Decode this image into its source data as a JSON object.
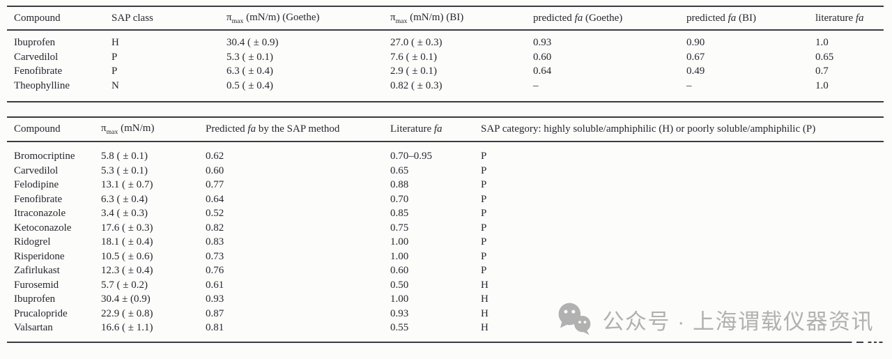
{
  "table1": {
    "headers": [
      "Compound",
      "SAP class",
      "π_max (mN/m) (Goethe)",
      "π_max (mN/m) (BI)",
      "predicted fa (Goethe)",
      "predicted fa (BI)",
      "literature fa"
    ],
    "rows": [
      [
        "Ibuprofen",
        "H",
        "30.4 ( ± 0.9)",
        "27.0 ( ± 0.3)",
        "0.93",
        "0.90",
        "1.0"
      ],
      [
        "Carvedilol",
        "P",
        "5.3 ( ± 0.1)",
        "7.6 ( ± 0.1)",
        "0.60",
        "0.67",
        "0.65"
      ],
      [
        "Fenofibrate",
        "P",
        "6.3 ( ± 0.4)",
        "2.9 ( ± 0.1)",
        "0.64",
        "0.49",
        "0.7"
      ],
      [
        "Theophylline",
        "N",
        "0.5 ( ± 0.4)",
        "0.82 ( ± 0.3)",
        "–",
        "–",
        "1.0"
      ]
    ]
  },
  "table2": {
    "headers": [
      "Compound",
      "π_max (mN/m)",
      "Predicted fa by the SAP method",
      "Literature fa",
      "SAP category: highly soluble/amphiphilic (H) or poorly soluble/amphiphilic (P)"
    ],
    "rows": [
      [
        "Bromocriptine",
        "5.8 ( ± 0.1)",
        "0.62",
        "0.70–0.95",
        "P"
      ],
      [
        "Carvedilol",
        "5.3 ( ± 0.1)",
        "0.60",
        "0.65",
        "P"
      ],
      [
        "Felodipine",
        "13.1 ( ± 0.7)",
        "0.77",
        "0.88",
        "P"
      ],
      [
        "Fenofibrate",
        "6.3 ( ± 0.4)",
        "0.64",
        "0.70",
        "P"
      ],
      [
        "Itraconazole",
        "3.4 ( ± 0.3)",
        "0.52",
        "0.85",
        "P"
      ],
      [
        "Ketoconazole",
        "17.6 ( ± 0.3)",
        "0.82",
        "0.75",
        "P"
      ],
      [
        "Ridogrel",
        "18.1 ( ± 0.4)",
        "0.83",
        "1.00",
        "P"
      ],
      [
        "Risperidone",
        "10.5 ( ± 0.6)",
        "0.73",
        "1.00",
        "P"
      ],
      [
        "Zafirlukast",
        "12.3 ( ± 0.4)",
        "0.76",
        "0.60",
        "P"
      ],
      [
        "Furosemid",
        "5.7 ( ± 0.2)",
        "0.61",
        "0.50",
        "H"
      ],
      [
        "Ibuprofen",
        "30.4 ± (0.9)",
        "0.93",
        "1.00",
        "H"
      ],
      [
        "Prucalopride",
        "22.9 ( ± 0.8)",
        "0.87",
        "0.93",
        "H"
      ],
      [
        "Valsartan",
        "16.6 ( ± 1.1)",
        "0.81",
        "0.55",
        "H"
      ]
    ]
  },
  "watermark": {
    "icon": "wechat-icon",
    "text": "公众号 · 上海谓载仪器资讯",
    "color": "#b1b1b1"
  },
  "colors": {
    "text": "#26262e",
    "rule": "#3a3a40",
    "background": "#fcfcfb"
  }
}
